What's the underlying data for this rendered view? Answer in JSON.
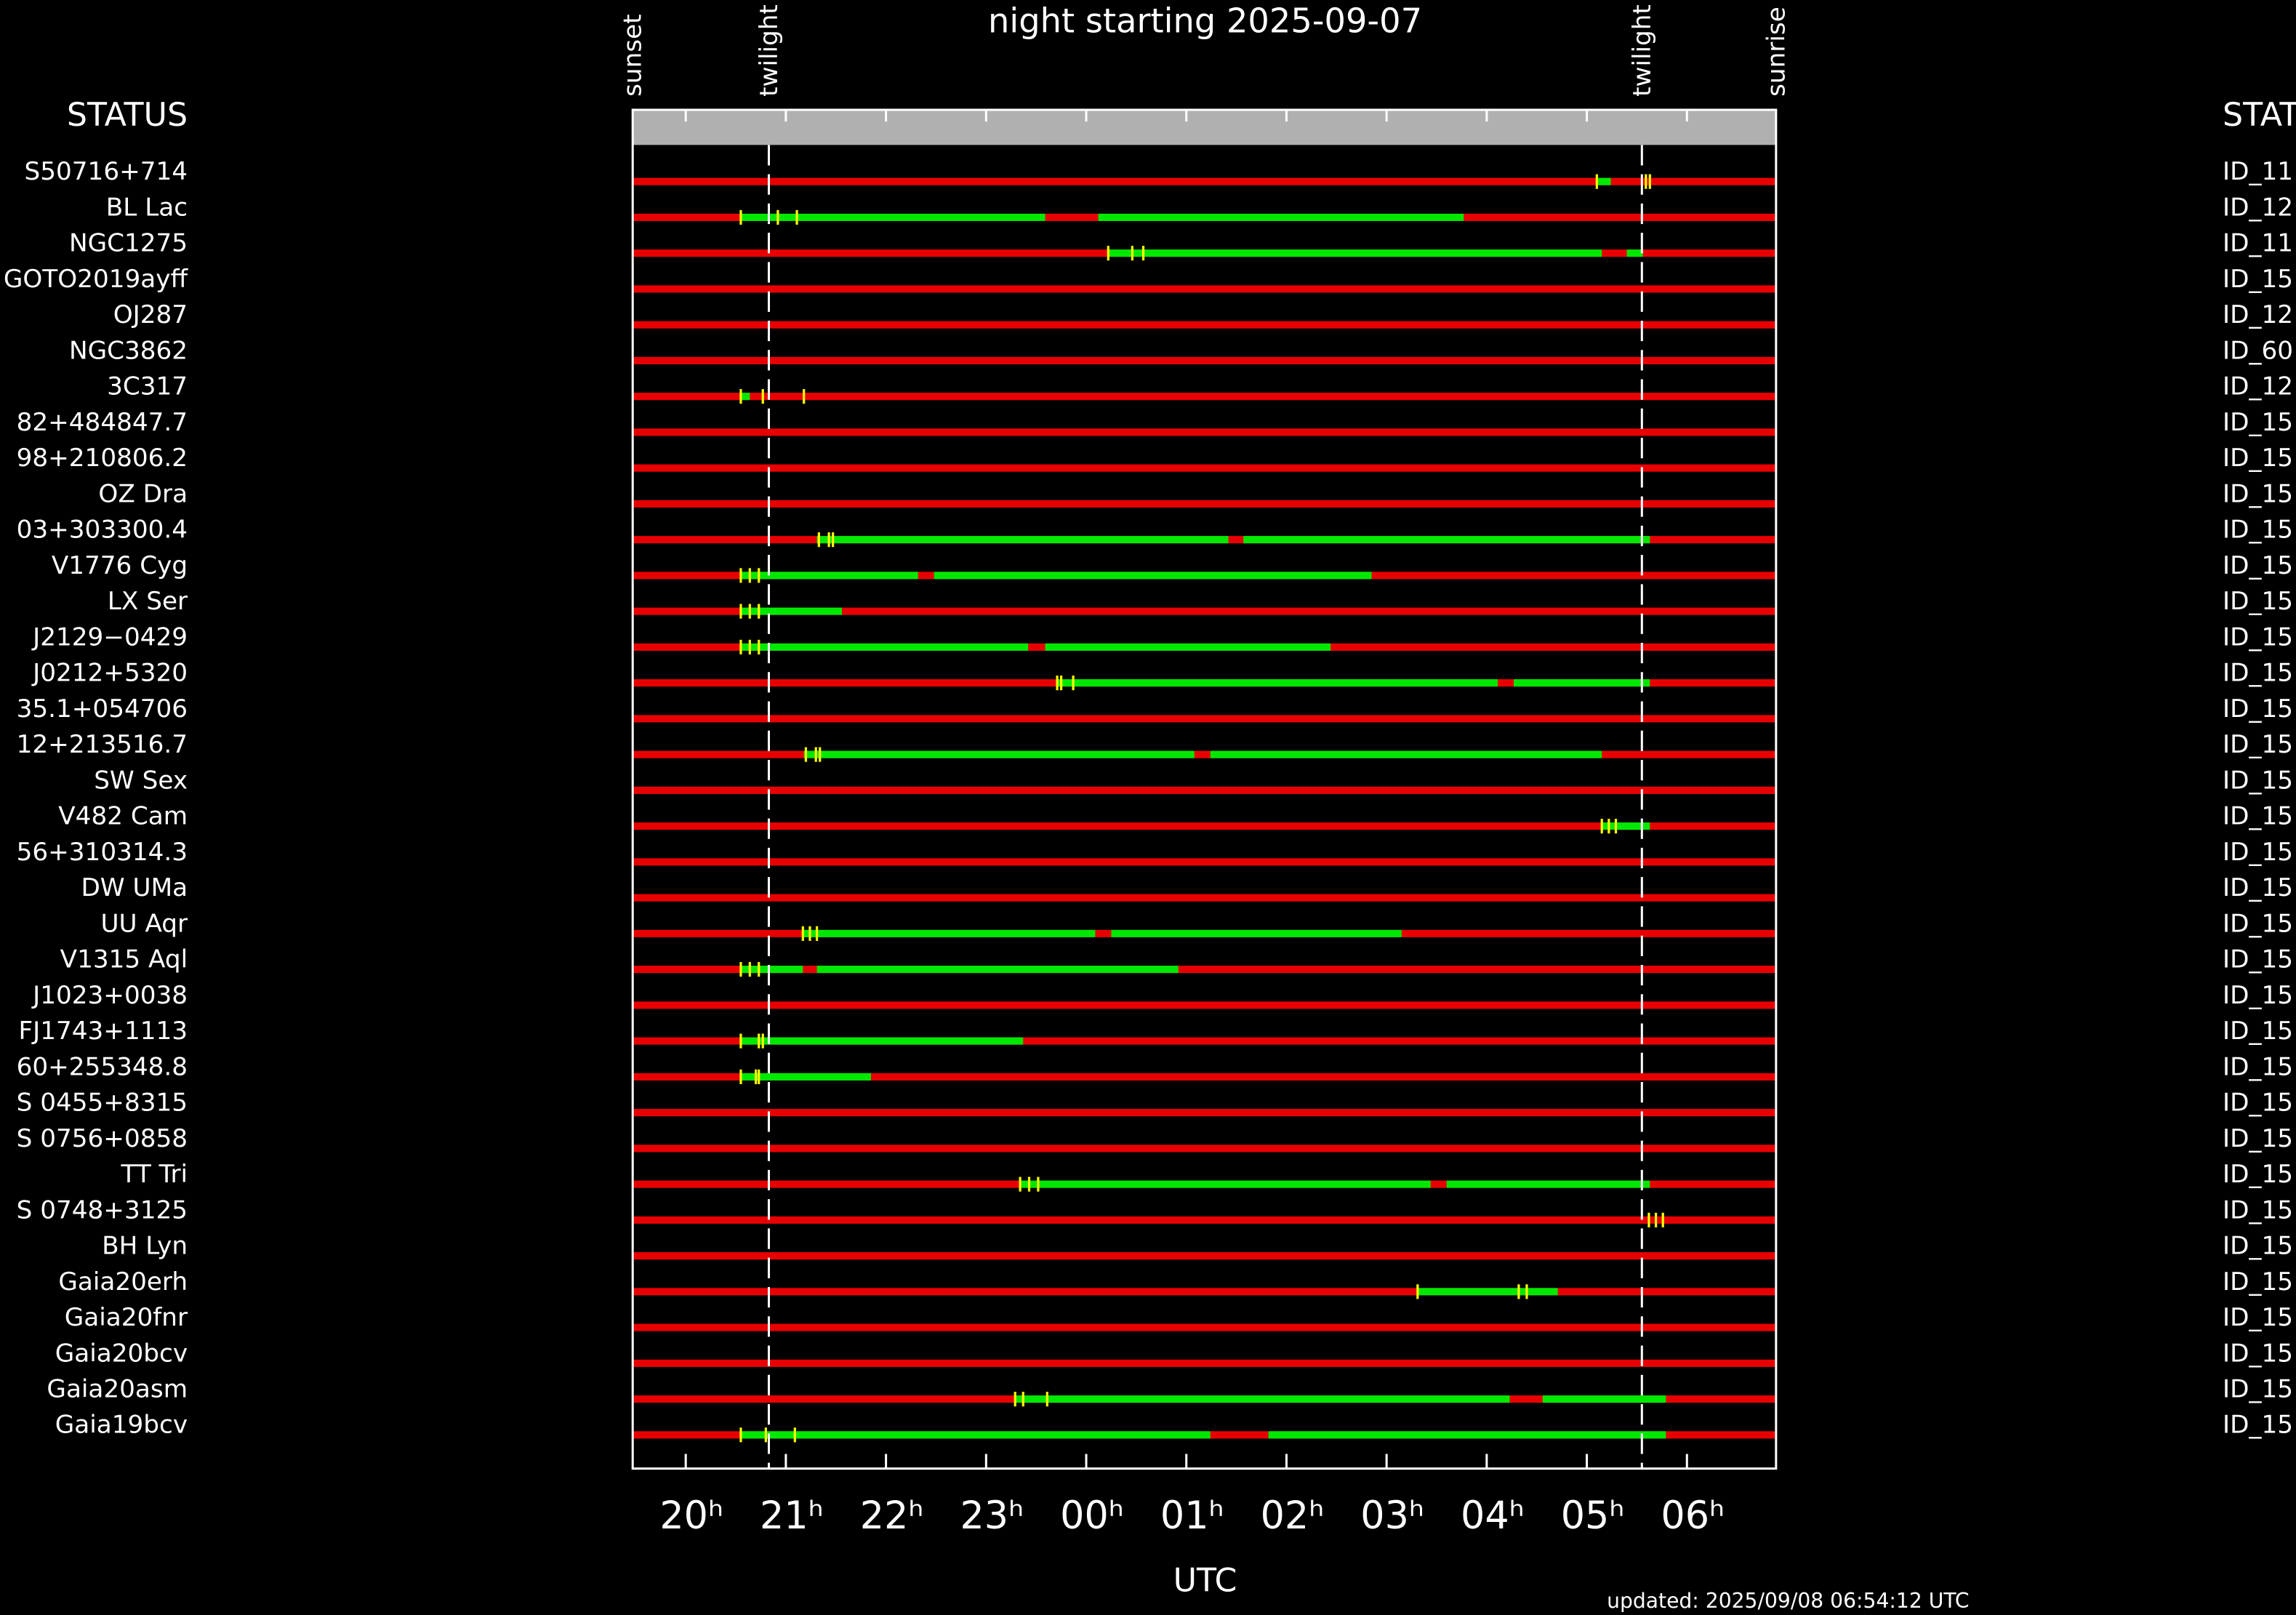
{
  "chart_data": {
    "type": "timeline",
    "title": "night starting 2025-09-07",
    "xlabel": "UTC",
    "footer": "updated: 2025/09/08 06:54:12 UTC",
    "left_header": "STATUS",
    "right_header": "STAT",
    "xlim": [
      19.47,
      30.89
    ],
    "xticks": [
      {
        "value": 20,
        "label": "20ʰ"
      },
      {
        "value": 21,
        "label": "21ʰ"
      },
      {
        "value": 22,
        "label": "22ʰ"
      },
      {
        "value": 23,
        "label": "23ʰ"
      },
      {
        "value": 24,
        "label": "00ʰ"
      },
      {
        "value": 25,
        "label": "01ʰ"
      },
      {
        "value": 26,
        "label": "02ʰ"
      },
      {
        "value": 27,
        "label": "03ʰ"
      },
      {
        "value": 28,
        "label": "04ʰ"
      },
      {
        "value": 29,
        "label": "05ʰ"
      },
      {
        "value": 30,
        "label": "06ʰ"
      }
    ],
    "events": [
      {
        "label": "sunset",
        "x": 19.47
      },
      {
        "label": "twilight",
        "x": 20.83
      },
      {
        "label": "twilight",
        "x": 29.55
      },
      {
        "label": "sunrise",
        "x": 30.89
      }
    ],
    "colors": {
      "unobservable": "#e80000",
      "observable": "#00e800",
      "marks": "#ffff00",
      "band": "#b0b0b0"
    },
    "rows": [
      {
        "name": "S50716+714",
        "id": "ID_11",
        "segments": [
          [
            29.09,
            29.24
          ]
        ],
        "marks": [
          29.1,
          29.59,
          29.63
        ]
      },
      {
        "name": "BL Lac",
        "id": "ID_12",
        "segments": [
          [
            20.55,
            23.59
          ],
          [
            24.12,
            27.77
          ]
        ],
        "marks": [
          20.55,
          20.92,
          21.11
        ]
      },
      {
        "name": "NGC1275",
        "id": "ID_11",
        "segments": [
          [
            24.22,
            29.15
          ],
          [
            29.4,
            29.56
          ]
        ],
        "marks": [
          24.22,
          24.46,
          24.57
        ]
      },
      {
        "name": "GOTO2019ayff",
        "id": "ID_15",
        "segments": [],
        "marks": []
      },
      {
        "name": "OJ287",
        "id": "ID_12",
        "segments": [],
        "marks": []
      },
      {
        "name": "NGC3862",
        "id": "ID_60",
        "segments": [],
        "marks": []
      },
      {
        "name": "3C317",
        "id": "ID_12",
        "segments": [
          [
            20.55,
            20.64
          ]
        ],
        "marks": [
          20.55,
          20.77,
          21.18
        ]
      },
      {
        "name": "82+484847.7",
        "id": "ID_15",
        "segments": [],
        "marks": []
      },
      {
        "name": "98+210806.2",
        "id": "ID_15",
        "segments": [],
        "marks": []
      },
      {
        "name": "OZ Dra",
        "id": "ID_15",
        "segments": [],
        "marks": []
      },
      {
        "name": "03+303300.4",
        "id": "ID_15",
        "segments": [
          [
            21.31,
            25.42
          ],
          [
            25.57,
            29.63
          ]
        ],
        "marks": [
          21.33,
          21.43,
          21.47
        ]
      },
      {
        "name": "V1776 Cyg",
        "id": "ID_15",
        "segments": [
          [
            20.55,
            22.32
          ],
          [
            22.48,
            26.85
          ]
        ],
        "marks": [
          20.55,
          20.64,
          20.73
        ]
      },
      {
        "name": "LX Ser",
        "id": "ID_15",
        "segments": [
          [
            20.55,
            21.56
          ]
        ],
        "marks": [
          20.55,
          20.64,
          20.73
        ]
      },
      {
        "name": "J2129−0429",
        "id": "ID_15",
        "segments": [
          [
            20.55,
            23.42
          ],
          [
            23.59,
            26.44
          ]
        ],
        "marks": [
          20.55,
          20.64,
          20.73
        ]
      },
      {
        "name": "J0212+5320",
        "id": "ID_15",
        "segments": [
          [
            23.71,
            28.11
          ],
          [
            28.27,
            29.63
          ]
        ],
        "marks": [
          23.71,
          23.75,
          23.87
        ]
      },
      {
        "name": "35.1+054706",
        "id": "ID_15",
        "segments": [],
        "marks": []
      },
      {
        "name": "12+213516.7",
        "id": "ID_15",
        "segments": [
          [
            21.18,
            25.08
          ],
          [
            25.24,
            29.15
          ]
        ],
        "marks": [
          21.2,
          21.3,
          21.34
        ]
      },
      {
        "name": "SW Sex",
        "id": "ID_15",
        "segments": [],
        "marks": []
      },
      {
        "name": "V482 Cam",
        "id": "ID_15",
        "segments": [
          [
            29.15,
            29.63
          ]
        ],
        "marks": [
          29.15,
          29.22,
          29.29
        ]
      },
      {
        "name": "56+310314.3",
        "id": "ID_15",
        "segments": [],
        "marks": []
      },
      {
        "name": "DW UMa",
        "id": "ID_15",
        "segments": [],
        "marks": []
      },
      {
        "name": "UU Aqr",
        "id": "ID_15",
        "segments": [
          [
            21.17,
            24.09
          ],
          [
            24.25,
            27.15
          ]
        ],
        "marks": [
          21.17,
          21.24,
          21.31
        ]
      },
      {
        "name": "V1315 Aql",
        "id": "ID_15",
        "segments": [
          [
            20.55,
            21.17
          ],
          [
            21.31,
            24.92
          ]
        ],
        "marks": [
          20.55,
          20.64,
          20.73
        ]
      },
      {
        "name": "J1023+0038",
        "id": "ID_15",
        "segments": [],
        "marks": []
      },
      {
        "name": "FJ1743+1113",
        "id": "ID_15",
        "segments": [
          [
            20.55,
            23.37
          ]
        ],
        "marks": [
          20.55,
          20.73,
          20.77
        ]
      },
      {
        "name": "60+255348.8",
        "id": "ID_15",
        "segments": [
          [
            20.55,
            21.85
          ]
        ],
        "marks": [
          20.55,
          20.7,
          20.73
        ]
      },
      {
        "name": "S 0455+8315",
        "id": "ID_15",
        "segments": [],
        "marks": []
      },
      {
        "name": "S 0756+0858",
        "id": "ID_15",
        "segments": [],
        "marks": []
      },
      {
        "name": "TT Tri",
        "id": "ID_15",
        "segments": [
          [
            23.34,
            27.44
          ],
          [
            27.6,
            29.63
          ]
        ],
        "marks": [
          23.34,
          23.43,
          23.52
        ]
      },
      {
        "name": "S 0748+3125",
        "id": "ID_15",
        "segments": [],
        "marks": [
          29.62,
          29.69,
          29.76
        ]
      },
      {
        "name": "BH Lyn",
        "id": "ID_15",
        "segments": [],
        "marks": []
      },
      {
        "name": "Gaia20erh",
        "id": "ID_15",
        "segments": [
          [
            27.31,
            28.71
          ]
        ],
        "marks": [
          27.31,
          28.32,
          28.4
        ]
      },
      {
        "name": "Gaia20fnr",
        "id": "ID_15",
        "segments": [],
        "marks": []
      },
      {
        "name": "Gaia20bcv",
        "id": "ID_15",
        "segments": [],
        "marks": []
      },
      {
        "name": "Gaia20asm",
        "id": "ID_15",
        "segments": [
          [
            23.29,
            28.23
          ],
          [
            28.56,
            29.79
          ]
        ],
        "marks": [
          23.29,
          23.37,
          23.61
        ]
      },
      {
        "name": "Gaia19bcv",
        "id": "ID_15",
        "segments": [
          [
            20.55,
            25.24
          ],
          [
            25.82,
            29.79
          ]
        ],
        "marks": [
          20.55,
          20.8,
          21.09
        ]
      }
    ]
  }
}
